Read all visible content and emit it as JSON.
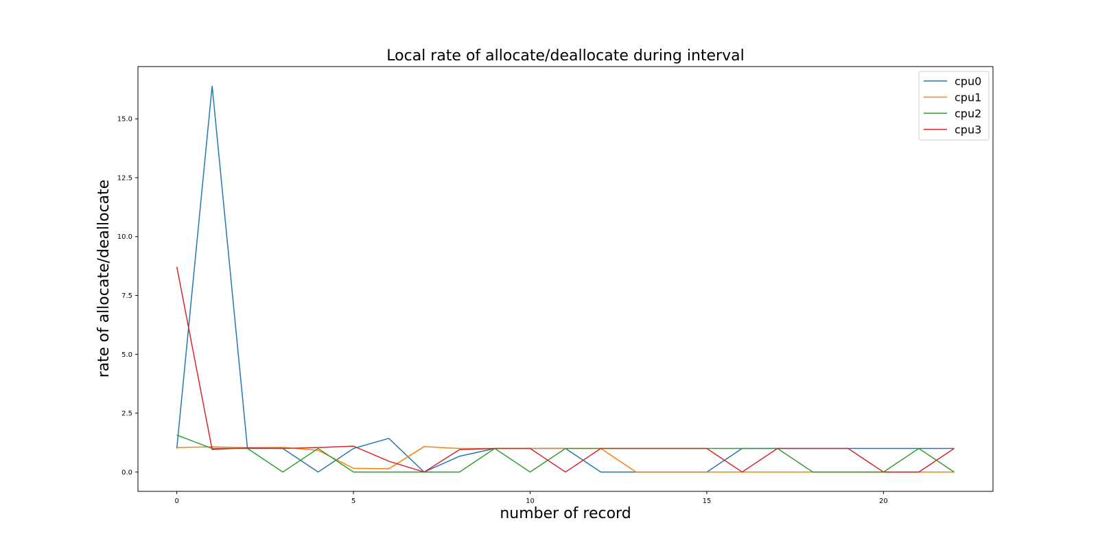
{
  "chart_data": {
    "type": "line",
    "title": "Local rate of allocate/deallocate during interval",
    "xlabel": "number of record",
    "ylabel": "rate of allocate/deallocate",
    "xlim": [
      -1.1,
      23.1
    ],
    "ylim": [
      -0.82,
      17.22
    ],
    "xticks": [
      0,
      5,
      10,
      15,
      20
    ],
    "yticks": [
      0.0,
      2.5,
      5.0,
      7.5,
      10.0,
      12.5,
      15.0
    ],
    "xtick_labels": [
      "0",
      "5",
      "10",
      "15",
      "20"
    ],
    "ytick_labels": [
      "0.0",
      "2.5",
      "5.0",
      "7.5",
      "10.0",
      "12.5",
      "15.0"
    ],
    "grid": false,
    "legend_position": "top-right",
    "x": [
      0,
      1,
      2,
      3,
      4,
      5,
      6,
      7,
      8,
      9,
      10,
      11,
      12,
      13,
      14,
      15,
      16,
      17,
      18,
      19,
      20,
      21,
      22
    ],
    "series": [
      {
        "name": "cpu0",
        "color": "#1f77b4",
        "values": [
          1.0,
          16.4,
          1.0,
          1.0,
          0.0,
          1.0,
          1.43,
          0.0,
          0.67,
          1.0,
          1.0,
          1.0,
          0.0,
          0.0,
          0.0,
          0.0,
          1.0,
          1.0,
          1.0,
          1.0,
          1.0,
          1.0,
          1.0
        ]
      },
      {
        "name": "cpu1",
        "color": "#ff7f0e",
        "values": [
          1.04,
          1.07,
          1.03,
          1.05,
          0.92,
          0.16,
          0.14,
          1.08,
          1.0,
          1.0,
          1.0,
          1.0,
          1.0,
          0.0,
          0.0,
          0.0,
          0.0,
          0.0,
          0.0,
          0.0,
          0.0,
          0.0,
          0.0
        ]
      },
      {
        "name": "cpu2",
        "color": "#2ca02c",
        "values": [
          1.57,
          1.0,
          1.0,
          0.0,
          1.0,
          0.0,
          0.0,
          0.0,
          0.0,
          1.0,
          0.0,
          1.0,
          1.0,
          1.0,
          1.0,
          1.0,
          1.0,
          1.0,
          0.0,
          0.0,
          0.0,
          1.0,
          0.0
        ]
      },
      {
        "name": "cpu3",
        "color": "#d62728",
        "values": [
          8.72,
          0.96,
          1.03,
          1.0,
          1.04,
          1.1,
          0.46,
          0.0,
          0.95,
          1.0,
          1.0,
          0.0,
          1.0,
          1.0,
          1.0,
          1.0,
          0.0,
          1.0,
          1.0,
          1.0,
          0.0,
          0.0,
          1.0
        ]
      }
    ]
  }
}
